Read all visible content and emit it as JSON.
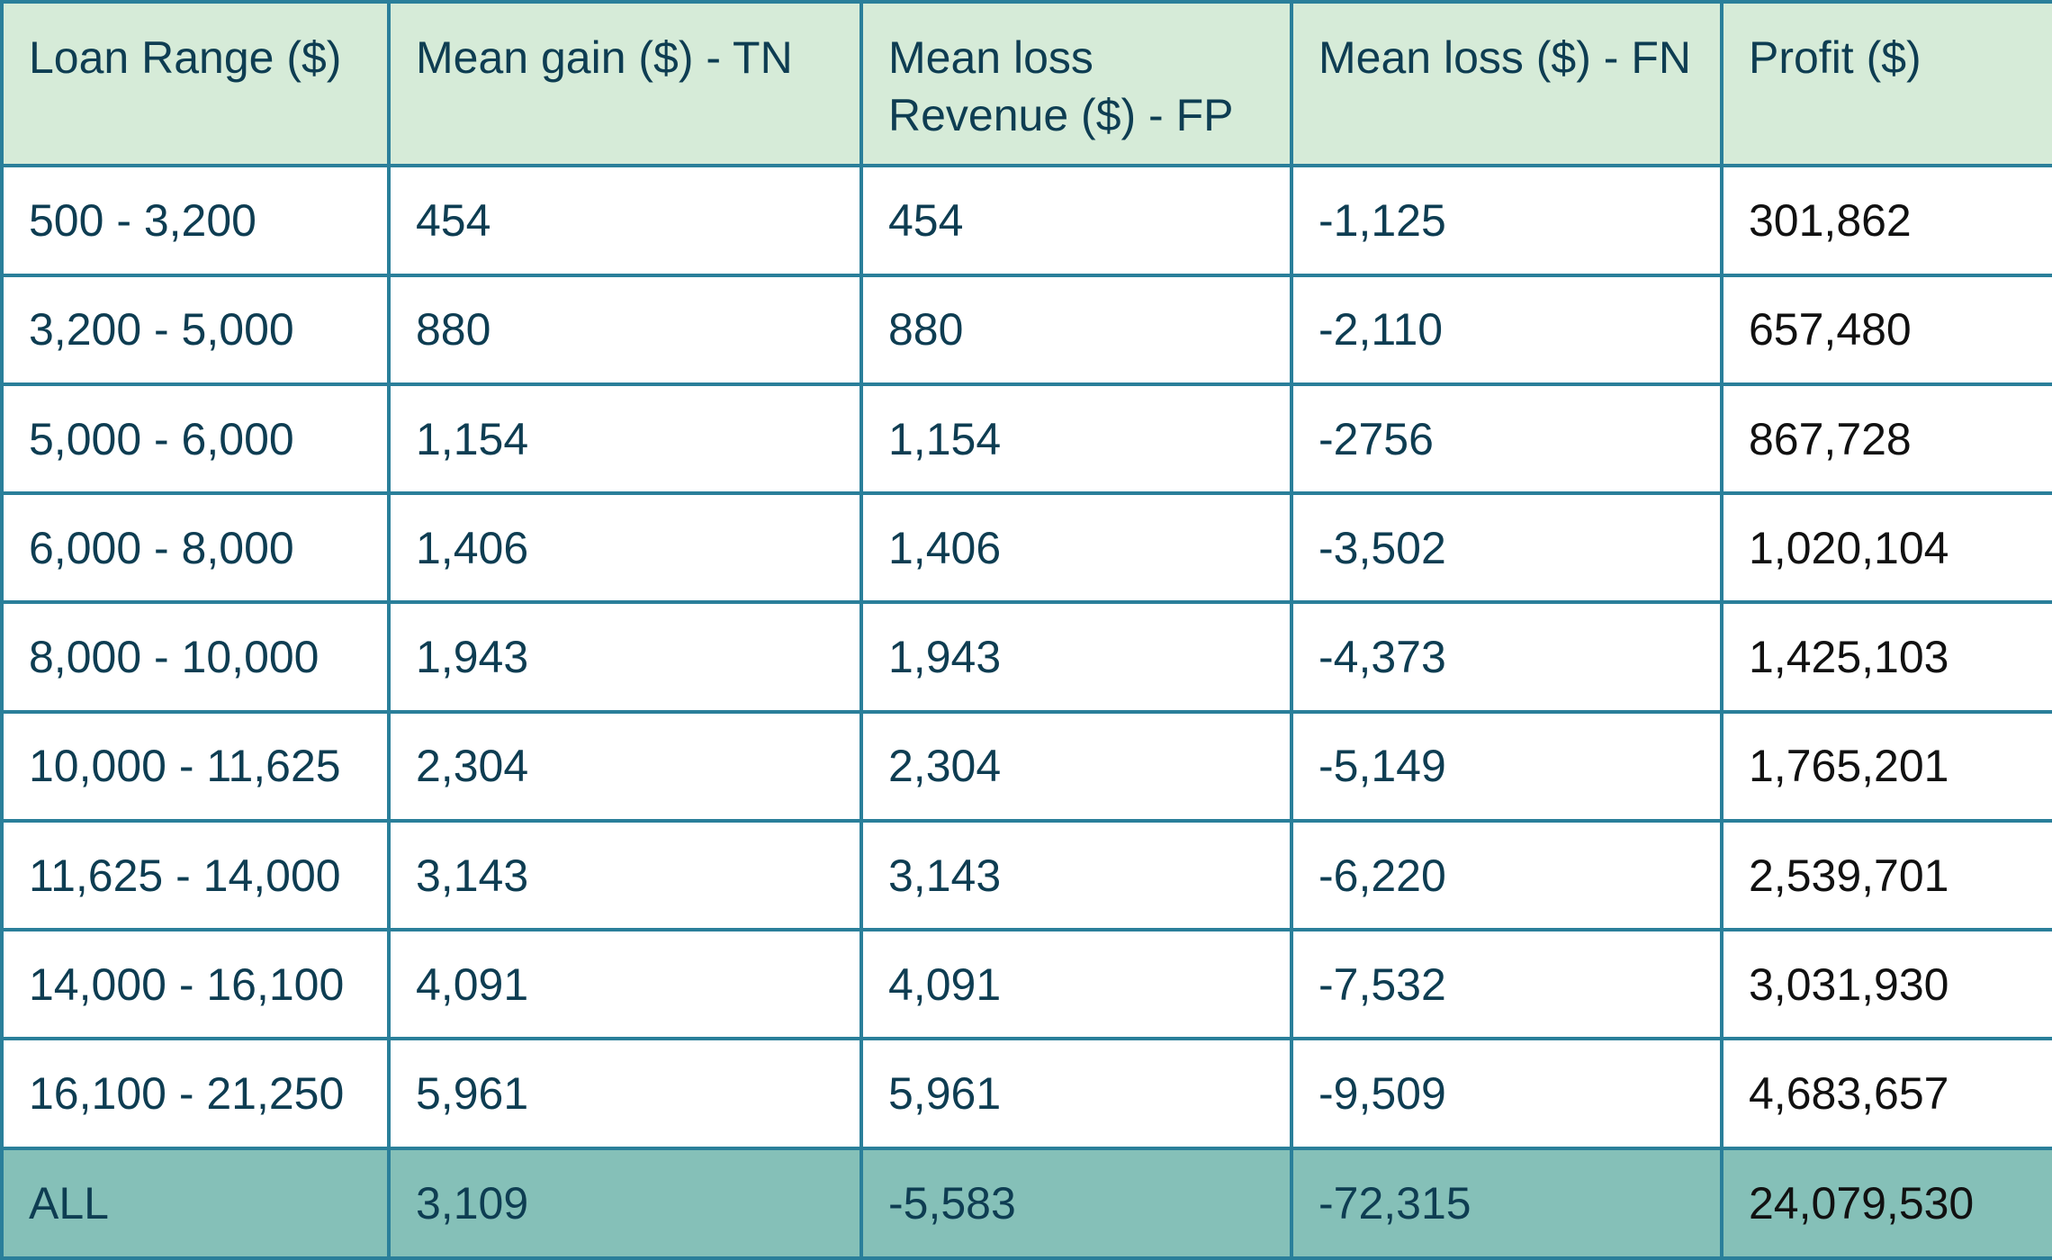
{
  "table": {
    "headers": [
      "Loan Range ($)",
      "Mean gain ($) - TN",
      "Mean loss Revenue  ($) - FP",
      "Mean loss ($) - FN",
      "Profit ($)"
    ],
    "rows": [
      [
        "500 - 3,200",
        "454",
        "454",
        "-1,125",
        "301,862"
      ],
      [
        "3,200 - 5,000",
        "880",
        "880",
        "-2,110",
        "657,480"
      ],
      [
        "5,000 - 6,000",
        "1,154",
        "1,154",
        "-2756",
        "867,728"
      ],
      [
        "6,000 - 8,000",
        "1,406",
        "1,406",
        "-3,502",
        "1,020,104"
      ],
      [
        "8,000 - 10,000",
        "1,943",
        "1,943",
        "-4,373",
        "1,425,103"
      ],
      [
        "10,000 - 11,625",
        "2,304",
        "2,304",
        "-5,149",
        "1,765,201"
      ],
      [
        "11,625 - 14,000",
        "3,143",
        "3,143",
        "-6,220",
        "2,539,701"
      ],
      [
        "14,000 - 16,100",
        "4,091",
        "4,091",
        "-7,532",
        "3,031,930"
      ],
      [
        "16,100 - 21,250",
        "5,961",
        "5,961",
        "-9,509",
        "4,683,657"
      ]
    ],
    "total": [
      "ALL",
      "3,109",
      "-5,583",
      "-72,315",
      "24,079,530"
    ]
  },
  "colors": {
    "header_bg": "#d6ebd8",
    "total_bg": "#85c0b8",
    "border": "#2a7f9a",
    "text": "#0e3d52"
  }
}
